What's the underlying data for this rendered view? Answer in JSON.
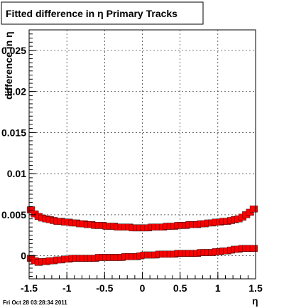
{
  "chart_data": {
    "type": "scatter",
    "title": "Fitted difference in  η  Primary Tracks",
    "xlabel": "η",
    "ylabel": "difference in η",
    "xlim": [
      -1.5,
      1.5
    ],
    "ylim": [
      -0.0028,
      0.0275
    ],
    "grid": true,
    "x_ticks": [
      -1.5,
      -1,
      -0.5,
      0,
      0.5,
      1,
      1.5
    ],
    "x_tick_labels": [
      "-1.5",
      "-1",
      "-0.5",
      "0",
      "0.5",
      "1",
      "1.5"
    ],
    "y_ticks": [
      0,
      0.005,
      0.01,
      0.015,
      0.02,
      0.025
    ],
    "y_tick_labels": [
      "0",
      "0.005",
      "0.01",
      "0.015",
      "0.02",
      "0.025"
    ],
    "series": [
      {
        "marker_color": "#ff0000",
        "x": [
          -1.475,
          -1.425,
          -1.375,
          -1.325,
          -1.275,
          -1.225,
          -1.175,
          -1.125,
          -1.075,
          -1.025,
          -0.975,
          -0.925,
          -0.875,
          -0.825,
          -0.775,
          -0.725,
          -0.675,
          -0.625,
          -0.575,
          -0.525,
          -0.475,
          -0.425,
          -0.375,
          -0.325,
          -0.275,
          -0.225,
          -0.175,
          -0.125,
          -0.075,
          -0.025,
          0.025,
          0.075,
          0.125,
          0.175,
          0.225,
          0.275,
          0.325,
          0.375,
          0.425,
          0.475,
          0.525,
          0.575,
          0.625,
          0.675,
          0.725,
          0.775,
          0.825,
          0.875,
          0.925,
          0.975,
          1.025,
          1.075,
          1.125,
          1.175,
          1.225,
          1.275,
          1.325,
          1.375,
          1.425,
          1.475
        ],
        "y": [
          0.0056,
          0.0051,
          0.0048,
          0.0046,
          0.0045,
          0.0044,
          0.0043,
          0.0042,
          0.0042,
          0.0041,
          0.0041,
          0.004,
          0.004,
          0.0039,
          0.0039,
          0.0038,
          0.0038,
          0.0037,
          0.0037,
          0.0037,
          0.0036,
          0.0036,
          0.0036,
          0.0035,
          0.0035,
          0.0035,
          0.0035,
          0.0034,
          0.0034,
          0.0034,
          0.0034,
          0.0034,
          0.0035,
          0.0035,
          0.0035,
          0.0035,
          0.0036,
          0.0036,
          0.0036,
          0.0037,
          0.0037,
          0.0037,
          0.0038,
          0.0038,
          0.0038,
          0.0039,
          0.0039,
          0.004,
          0.004,
          0.0041,
          0.0041,
          0.0042,
          0.0042,
          0.0043,
          0.0044,
          0.0045,
          0.0047,
          0.005,
          0.0053,
          0.0057
        ]
      },
      {
        "marker_color": "#ff0000",
        "x": [
          -1.475,
          -1.425,
          -1.375,
          -1.325,
          -1.275,
          -1.225,
          -1.175,
          -1.125,
          -1.075,
          -1.025,
          -0.975,
          -0.925,
          -0.875,
          -0.825,
          -0.775,
          -0.725,
          -0.675,
          -0.625,
          -0.575,
          -0.525,
          -0.475,
          -0.425,
          -0.375,
          -0.325,
          -0.275,
          -0.225,
          -0.175,
          -0.125,
          -0.075,
          -0.025,
          0.025,
          0.075,
          0.125,
          0.175,
          0.225,
          0.275,
          0.325,
          0.375,
          0.425,
          0.475,
          0.525,
          0.575,
          0.625,
          0.675,
          0.725,
          0.775,
          0.825,
          0.875,
          0.925,
          0.975,
          1.025,
          1.075,
          1.125,
          1.175,
          1.225,
          1.275,
          1.325,
          1.375,
          1.425,
          1.475
        ],
        "y": [
          -0.0003,
          -0.0006,
          -0.0008,
          -0.0007,
          -0.0007,
          -0.0006,
          -0.0006,
          -0.0005,
          -0.0005,
          -0.0004,
          -0.0004,
          -0.0003,
          -0.0003,
          -0.0003,
          -0.0003,
          -0.0003,
          -0.0003,
          -0.0003,
          -0.0002,
          -0.0002,
          -0.0002,
          -0.0002,
          -0.0002,
          -0.0002,
          -0.0002,
          -0.0001,
          -0.0001,
          -0.0001,
          -0.0001,
          0.0,
          0.0001,
          0.0001,
          0.0001,
          0.0001,
          0.0002,
          0.0002,
          0.0002,
          0.0002,
          0.0002,
          0.0003,
          0.0003,
          0.0003,
          0.0003,
          0.0003,
          0.0003,
          0.0004,
          0.0004,
          0.0004,
          0.0004,
          0.0005,
          0.0005,
          0.0006,
          0.0006,
          0.0007,
          0.0008,
          0.0008,
          0.0009,
          0.0009,
          0.0009,
          0.0009
        ]
      }
    ]
  },
  "footer": {
    "timestamp": "Fri Oct 28 03:28:34 2011"
  }
}
